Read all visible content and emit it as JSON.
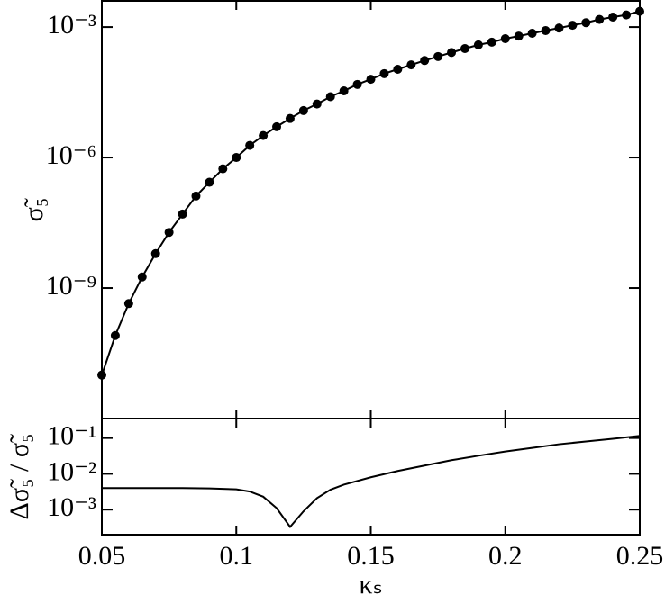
{
  "chart_data": [
    {
      "type": "line",
      "markers": true,
      "color": "#000000",
      "log_y": true,
      "ylabel": "σ̃₅",
      "x": [
        0.05,
        0.055,
        0.06,
        0.065,
        0.07,
        0.075,
        0.08,
        0.085,
        0.09,
        0.095,
        0.1,
        0.105,
        0.11,
        0.115,
        0.12,
        0.125,
        0.13,
        0.135,
        0.14,
        0.145,
        0.15,
        0.155,
        0.16,
        0.165,
        0.17,
        0.175,
        0.18,
        0.185,
        0.19,
        0.195,
        0.2,
        0.205,
        0.21,
        0.215,
        0.22,
        0.225,
        0.23,
        0.235,
        0.24,
        0.245,
        0.25
      ],
      "values": [
        1e-11,
        8.1e-11,
        4.4e-10,
        1.8e-09,
        6.2e-09,
        1.9e-08,
        5e-08,
        1.3e-07,
        2.7e-07,
        5.5e-07,
        1e-06,
        1.9e-06,
        3.2e-06,
        5.1e-06,
        7.9e-06,
        1.2e-05,
        1.7e-05,
        2.5e-05,
        3.4e-05,
        4.8e-05,
        6.3e-05,
        8.5e-05,
        0.000107,
        0.000135,
        0.00017,
        0.00021,
        0.00026,
        0.00032,
        0.00039,
        0.00045,
        0.00054,
        0.00062,
        0.00072,
        0.00083,
        0.00095,
        0.0011,
        0.00126,
        0.0015,
        0.0017,
        0.0019,
        0.0023
      ],
      "xlim": [
        0.05,
        0.25
      ],
      "xticks": [
        0.05,
        0.1,
        0.15,
        0.2,
        0.25
      ],
      "ylim": [
        1e-12,
        0.004
      ],
      "yticks": [
        {
          "value": 1e-09,
          "label": "10⁻⁹"
        },
        {
          "value": 1e-06,
          "label": "10⁻⁶"
        },
        {
          "value": 0.001,
          "label": "10⁻³"
        }
      ]
    },
    {
      "type": "line",
      "markers": false,
      "color": "#000000",
      "log_y": true,
      "xlabel": "κₛ",
      "ylabel": "Δσ̃₅ / σ̃₅",
      "x": [
        0.05,
        0.06,
        0.07,
        0.08,
        0.09,
        0.1,
        0.105,
        0.11,
        0.115,
        0.12,
        0.125,
        0.13,
        0.135,
        0.14,
        0.15,
        0.16,
        0.17,
        0.18,
        0.19,
        0.2,
        0.21,
        0.22,
        0.23,
        0.24,
        0.25
      ],
      "values": [
        0.004,
        0.004,
        0.004,
        0.004,
        0.0039,
        0.0037,
        0.0032,
        0.0023,
        0.0011,
        0.00033,
        0.0009,
        0.0021,
        0.0036,
        0.005,
        0.008,
        0.012,
        0.017,
        0.024,
        0.032,
        0.042,
        0.053,
        0.067,
        0.08,
        0.095,
        0.115
      ],
      "xlim": [
        0.05,
        0.25
      ],
      "xticks": [
        0.05,
        0.1,
        0.15,
        0.2,
        0.25
      ],
      "ylim": [
        0.0002,
        0.35
      ],
      "yticks": [
        {
          "value": 0.001,
          "label": "10⁻³"
        },
        {
          "value": 0.01,
          "label": "10⁻²"
        },
        {
          "value": 0.1,
          "label": "10⁻¹"
        }
      ]
    }
  ]
}
